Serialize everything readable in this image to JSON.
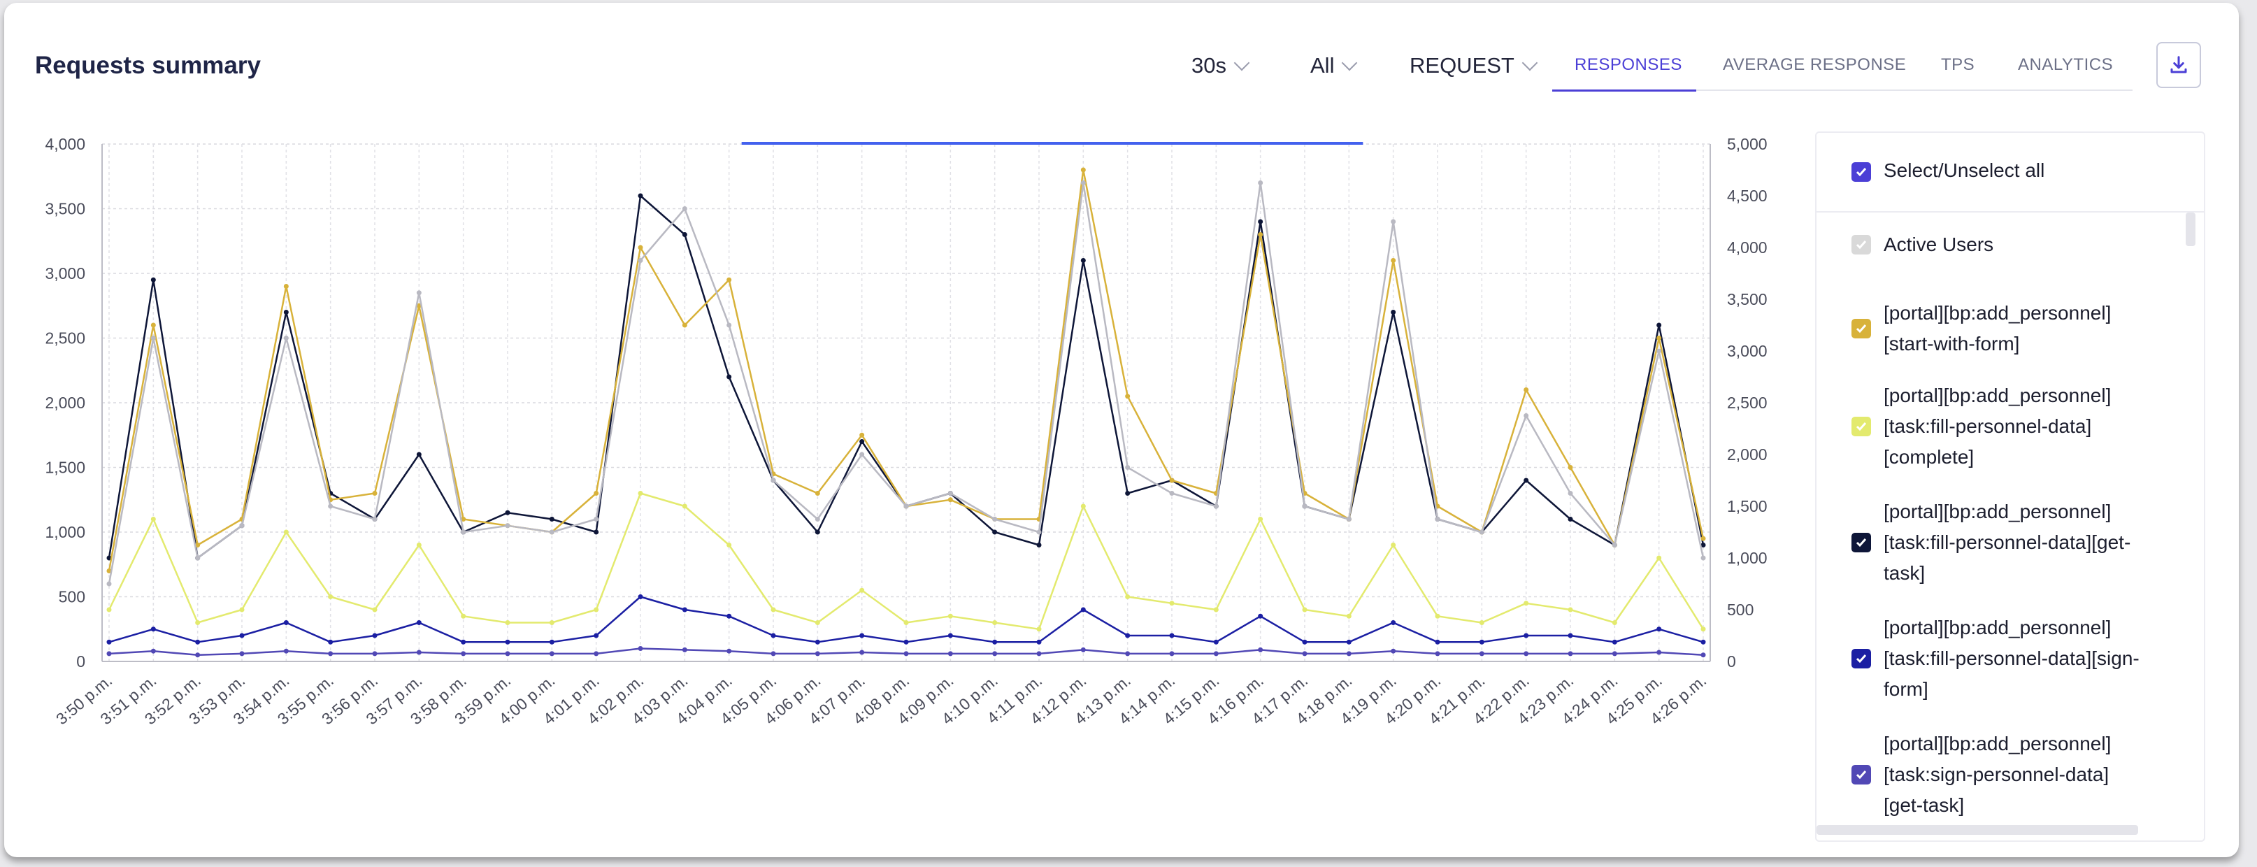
{
  "header": {
    "title": "Requests summary",
    "interval": "30s",
    "filter": "All",
    "type": "REQUEST",
    "download_icon": "download-icon"
  },
  "tabs": [
    {
      "label": "RESPONSES",
      "active": true
    },
    {
      "label": "AVERAGE RESPONSE",
      "active": false
    },
    {
      "label": "TPS",
      "active": false
    },
    {
      "label": "ANALYTICS",
      "active": false
    }
  ],
  "legend": {
    "select_all": "Select/Unselect all",
    "items": [
      {
        "label": "Active Users",
        "color": "#d9d9d9",
        "checked": true
      },
      {
        "label": "[portal][bp:add_personnel]\n[start-with-form]",
        "color": "#d8b23a",
        "checked": true
      },
      {
        "label": "[portal][bp:add_personnel]\n[task:fill-personnel-data]\n[complete]",
        "color": "#e3ea6e",
        "checked": true
      },
      {
        "label": "[portal][bp:add_personnel]\n[task:fill-personnel-data][get-\ntask]",
        "color": "#0e1638",
        "checked": true
      },
      {
        "label": "[portal][bp:add_personnel]\n[task:fill-personnel-data][sign-\nform]",
        "color": "#1b1fa3",
        "checked": true
      },
      {
        "label": "[portal][bp:add_personnel]\n[task:sign-personnel-data]\n[get-task]",
        "color": "#5148b5",
        "checked": true
      }
    ]
  },
  "chart_data": {
    "type": "line",
    "title": "Requests summary",
    "x": [
      "3:50 p.m.",
      "3:51 p.m.",
      "3:52 p.m.",
      "3:53 p.m.",
      "3:54 p.m.",
      "3:55 p.m.",
      "3:56 p.m.",
      "3:57 p.m.",
      "3:58 p.m.",
      "3:59 p.m.",
      "4:00 p.m.",
      "4:01 p.m.",
      "4:02 p.m.",
      "4:03 p.m.",
      "4:04 p.m.",
      "4:05 p.m.",
      "4:06 p.m.",
      "4:07 p.m.",
      "4:08 p.m.",
      "4:09 p.m.",
      "4:10 p.m.",
      "4:11 p.m.",
      "4:12 p.m.",
      "4:13 p.m.",
      "4:14 p.m.",
      "4:15 p.m.",
      "4:16 p.m.",
      "4:17 p.m.",
      "4:18 p.m.",
      "4:19 p.m.",
      "4:20 p.m.",
      "4:21 p.m.",
      "4:22 p.m.",
      "4:23 p.m.",
      "4:24 p.m.",
      "4:25 p.m.",
      "4:26 p.m."
    ],
    "y_left": {
      "min": 0,
      "max": 4000,
      "ticks": [
        "0",
        "500",
        "1,000",
        "1,500",
        "2,000",
        "2,500",
        "3,000",
        "3,500",
        "4,000"
      ]
    },
    "y_right": {
      "min": 0,
      "max": 5000,
      "ticks": [
        "0",
        "500",
        "1,000",
        "1,500",
        "2,000",
        "2,500",
        "3,000",
        "3,500",
        "4,000",
        "4,500",
        "5,000"
      ]
    },
    "grid": true,
    "series": [
      {
        "name": "[portal][bp:add_personnel][task:fill-personnel-data][get-task]",
        "color": "#0e1638",
        "values": [
          800,
          2950,
          800,
          1050,
          2700,
          1300,
          1100,
          1600,
          1000,
          1150,
          1100,
          1000,
          3600,
          3300,
          2200,
          1400,
          1000,
          1700,
          1200,
          1300,
          1000,
          900,
          3100,
          1300,
          1400,
          1200,
          3400,
          1200,
          1100,
          2700,
          1100,
          1000,
          1400,
          1100,
          900,
          2600,
          900
        ]
      },
      {
        "name": "[portal][bp:add_personnel][start-with-form]",
        "color": "#d8b23a",
        "values": [
          700,
          2600,
          900,
          1100,
          2900,
          1250,
          1300,
          2750,
          1100,
          1050,
          1000,
          1300,
          3200,
          2600,
          2950,
          1450,
          1300,
          1750,
          1200,
          1250,
          1100,
          1100,
          3800,
          2050,
          1400,
          1300,
          3300,
          1300,
          1100,
          3100,
          1200,
          1000,
          2100,
          1500,
          900,
          2500,
          950
        ]
      },
      {
        "name": "[portal][bp:add_personnel][task:fill-personnel-data][complete]",
        "color": "#e3ea6e",
        "values": [
          400,
          1100,
          300,
          400,
          1000,
          500,
          400,
          900,
          350,
          300,
          300,
          400,
          1300,
          1200,
          900,
          400,
          300,
          550,
          300,
          350,
          300,
          250,
          1200,
          500,
          450,
          400,
          1100,
          400,
          350,
          900,
          350,
          300,
          450,
          400,
          300,
          800,
          250
        ]
      },
      {
        "name": "[portal][bp:add_personnel][task:fill-personnel-data][sign-form]",
        "color": "#1b1fa3",
        "values": [
          150,
          250,
          150,
          200,
          300,
          150,
          200,
          300,
          150,
          150,
          150,
          200,
          500,
          400,
          350,
          200,
          150,
          200,
          150,
          200,
          150,
          150,
          400,
          200,
          200,
          150,
          350,
          150,
          150,
          300,
          150,
          150,
          200,
          200,
          150,
          250,
          150
        ]
      },
      {
        "name": "[portal][bp:add_personnel][task:sign-personnel-data][get-task]",
        "color": "#5148b5",
        "values": [
          60,
          80,
          50,
          60,
          80,
          60,
          60,
          70,
          60,
          60,
          60,
          60,
          100,
          90,
          80,
          60,
          60,
          70,
          60,
          60,
          60,
          60,
          90,
          60,
          60,
          60,
          90,
          60,
          60,
          80,
          60,
          60,
          60,
          60,
          60,
          70,
          50
        ]
      },
      {
        "name": "Active Users",
        "color": "#b9b9c2",
        "values": [
          600,
          2500,
          800,
          1050,
          2500,
          1200,
          1100,
          2850,
          1000,
          1050,
          1000,
          1100,
          3100,
          3500,
          2600,
          1400,
          1100,
          1600,
          1200,
          1300,
          1100,
          1000,
          3700,
          1500,
          1300,
          1200,
          3700,
          1200,
          1100,
          3400,
          1100,
          1000,
          1900,
          1300,
          900,
          2400,
          800
        ]
      }
    ]
  }
}
